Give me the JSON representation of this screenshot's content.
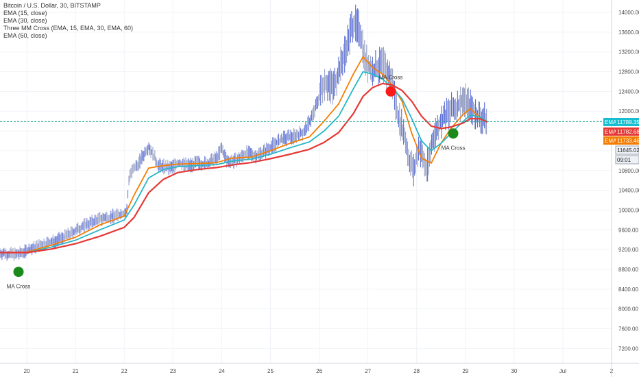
{
  "legend": [
    "Bitcoin / U.S. Dollar, 30, BITSTAMP",
    "EMA (15, close)",
    "EMA (30, close)",
    "Three MM Cross (EMA, 15, EMA, 30, EMA, 60)",
    "EMA (60, close)"
  ],
  "price_badges": [
    {
      "label": "EMA",
      "value": "11789.35",
      "color": "#17becf"
    },
    {
      "label": "EMA",
      "value": "11782.68",
      "color": "#e53935"
    },
    {
      "label": "EMA",
      "value": "11733.46",
      "color": "#f57c00"
    },
    {
      "label": "",
      "value": "11645.02",
      "color": "#ffffff"
    },
    {
      "label": "",
      "value": "09:01",
      "color": "#ffffff"
    }
  ],
  "chart_data": {
    "type": "line",
    "x_ticks": [
      "20",
      "21",
      "22",
      "23",
      "24",
      "25",
      "26",
      "27",
      "28",
      "29",
      "30",
      "Jul",
      "2"
    ],
    "y_ticks": [
      7200,
      7600,
      8000,
      8400,
      8800,
      9200,
      9600,
      10000,
      10400,
      10800,
      11200,
      11600,
      12000,
      12400,
      12800,
      13200,
      13600,
      14000
    ],
    "ylim": [
      6900,
      14250
    ],
    "xlim": [
      19.45,
      32.0
    ],
    "current_price": 11789.35,
    "price": {
      "x": [
        19.45,
        19.8,
        20.0,
        20.3,
        20.6,
        20.9,
        21.2,
        21.5,
        21.8,
        22.05,
        22.1,
        22.3,
        22.5,
        22.7,
        22.95,
        23.1,
        23.3,
        23.5,
        23.7,
        23.9,
        24.0,
        24.1,
        24.3,
        24.5,
        24.7,
        24.9,
        25.1,
        25.3,
        25.5,
        25.7,
        25.9,
        26.1,
        26.3,
        26.5,
        26.7,
        26.85,
        26.95,
        27.1,
        27.3,
        27.5,
        27.6,
        27.75,
        27.85,
        27.95,
        28.05,
        28.2,
        28.35,
        28.5,
        28.7,
        28.85,
        28.95,
        29.1,
        29.25,
        29.45
      ],
      "values": [
        9130,
        9100,
        9180,
        9300,
        9380,
        9520,
        9700,
        9820,
        9880,
        9950,
        10700,
        10950,
        11300,
        10900,
        10850,
        10950,
        10900,
        10950,
        10930,
        11050,
        11250,
        11000,
        11000,
        11150,
        11100,
        11200,
        11350,
        11450,
        11500,
        11580,
        12000,
        12600,
        12500,
        13100,
        13800,
        13600,
        13000,
        12800,
        12950,
        12600,
        12000,
        11500,
        11000,
        10800,
        11300,
        10800,
        11500,
        11800,
        12000,
        12100,
        12250,
        12100,
        11900,
        11790
      ]
    },
    "series": [
      {
        "name": "EMA (15, close)",
        "color": "#f57c00",
        "x": [
          19.45,
          20.0,
          20.5,
          21.0,
          21.5,
          22.0,
          22.2,
          22.5,
          22.8,
          23.1,
          23.5,
          23.9,
          24.2,
          24.6,
          25.0,
          25.4,
          25.8,
          26.1,
          26.4,
          26.7,
          26.9,
          27.1,
          27.3,
          27.5,
          27.7,
          27.9,
          28.1,
          28.3,
          28.5,
          28.7,
          28.95,
          29.1,
          29.3,
          29.45
        ],
        "values": [
          9140,
          9150,
          9290,
          9450,
          9700,
          9880,
          10300,
          10850,
          10900,
          10930,
          10940,
          10960,
          11050,
          11070,
          11200,
          11350,
          11480,
          11800,
          12150,
          12750,
          13100,
          12880,
          12750,
          12520,
          12200,
          11550,
          11050,
          10950,
          11350,
          11650,
          11930,
          12050,
          11870,
          11780
        ]
      },
      {
        "name": "EMA (30, close)",
        "color": "#26b6c6",
        "x": [
          19.45,
          20.0,
          20.5,
          21.0,
          21.5,
          22.0,
          22.2,
          22.5,
          22.8,
          23.1,
          23.5,
          23.9,
          24.2,
          24.6,
          25.0,
          25.4,
          25.8,
          26.1,
          26.4,
          26.7,
          26.9,
          27.1,
          27.3,
          27.5,
          27.7,
          27.9,
          28.1,
          28.3,
          28.5,
          28.7,
          28.95,
          29.1,
          29.3,
          29.45
        ],
        "values": [
          9140,
          9140,
          9250,
          9390,
          9600,
          9800,
          10100,
          10650,
          10820,
          10880,
          10900,
          10920,
          10990,
          11030,
          11130,
          11260,
          11380,
          11600,
          11900,
          12450,
          12800,
          12750,
          12650,
          12480,
          12250,
          11850,
          11400,
          11200,
          11350,
          11550,
          11790,
          11920,
          11880,
          11790
        ]
      },
      {
        "name": "EMA (60, close)",
        "color": "#e53935",
        "x": [
          19.45,
          20.0,
          20.5,
          21.0,
          21.5,
          22.0,
          22.2,
          22.5,
          22.8,
          23.1,
          23.5,
          23.9,
          24.2,
          24.6,
          25.0,
          25.4,
          25.8,
          26.1,
          26.4,
          26.7,
          26.9,
          27.1,
          27.3,
          27.5,
          27.7,
          27.9,
          28.1,
          28.3,
          28.5,
          28.7,
          28.95,
          29.1,
          29.3,
          29.45
        ],
        "values": [
          9140,
          9140,
          9210,
          9320,
          9470,
          9650,
          9850,
          10350,
          10620,
          10760,
          10820,
          10860,
          10910,
          10960,
          11040,
          11130,
          11230,
          11370,
          11570,
          11950,
          12300,
          12480,
          12560,
          12530,
          12420,
          12200,
          11900,
          11700,
          11650,
          11680,
          11760,
          11850,
          11850,
          11780
        ]
      }
    ],
    "signals": [
      {
        "x": 19.83,
        "y": 8750,
        "color": "#1b8a1b",
        "label": "MA Cross",
        "label_pos": "below"
      },
      {
        "x": 27.47,
        "y": 12400,
        "color": "#ff1a1a",
        "label": "MA Cross",
        "label_pos": "above"
      },
      {
        "x": 28.75,
        "y": 11550,
        "color": "#1b8a1b",
        "label": "MA Cross",
        "label_pos": "below"
      }
    ]
  }
}
